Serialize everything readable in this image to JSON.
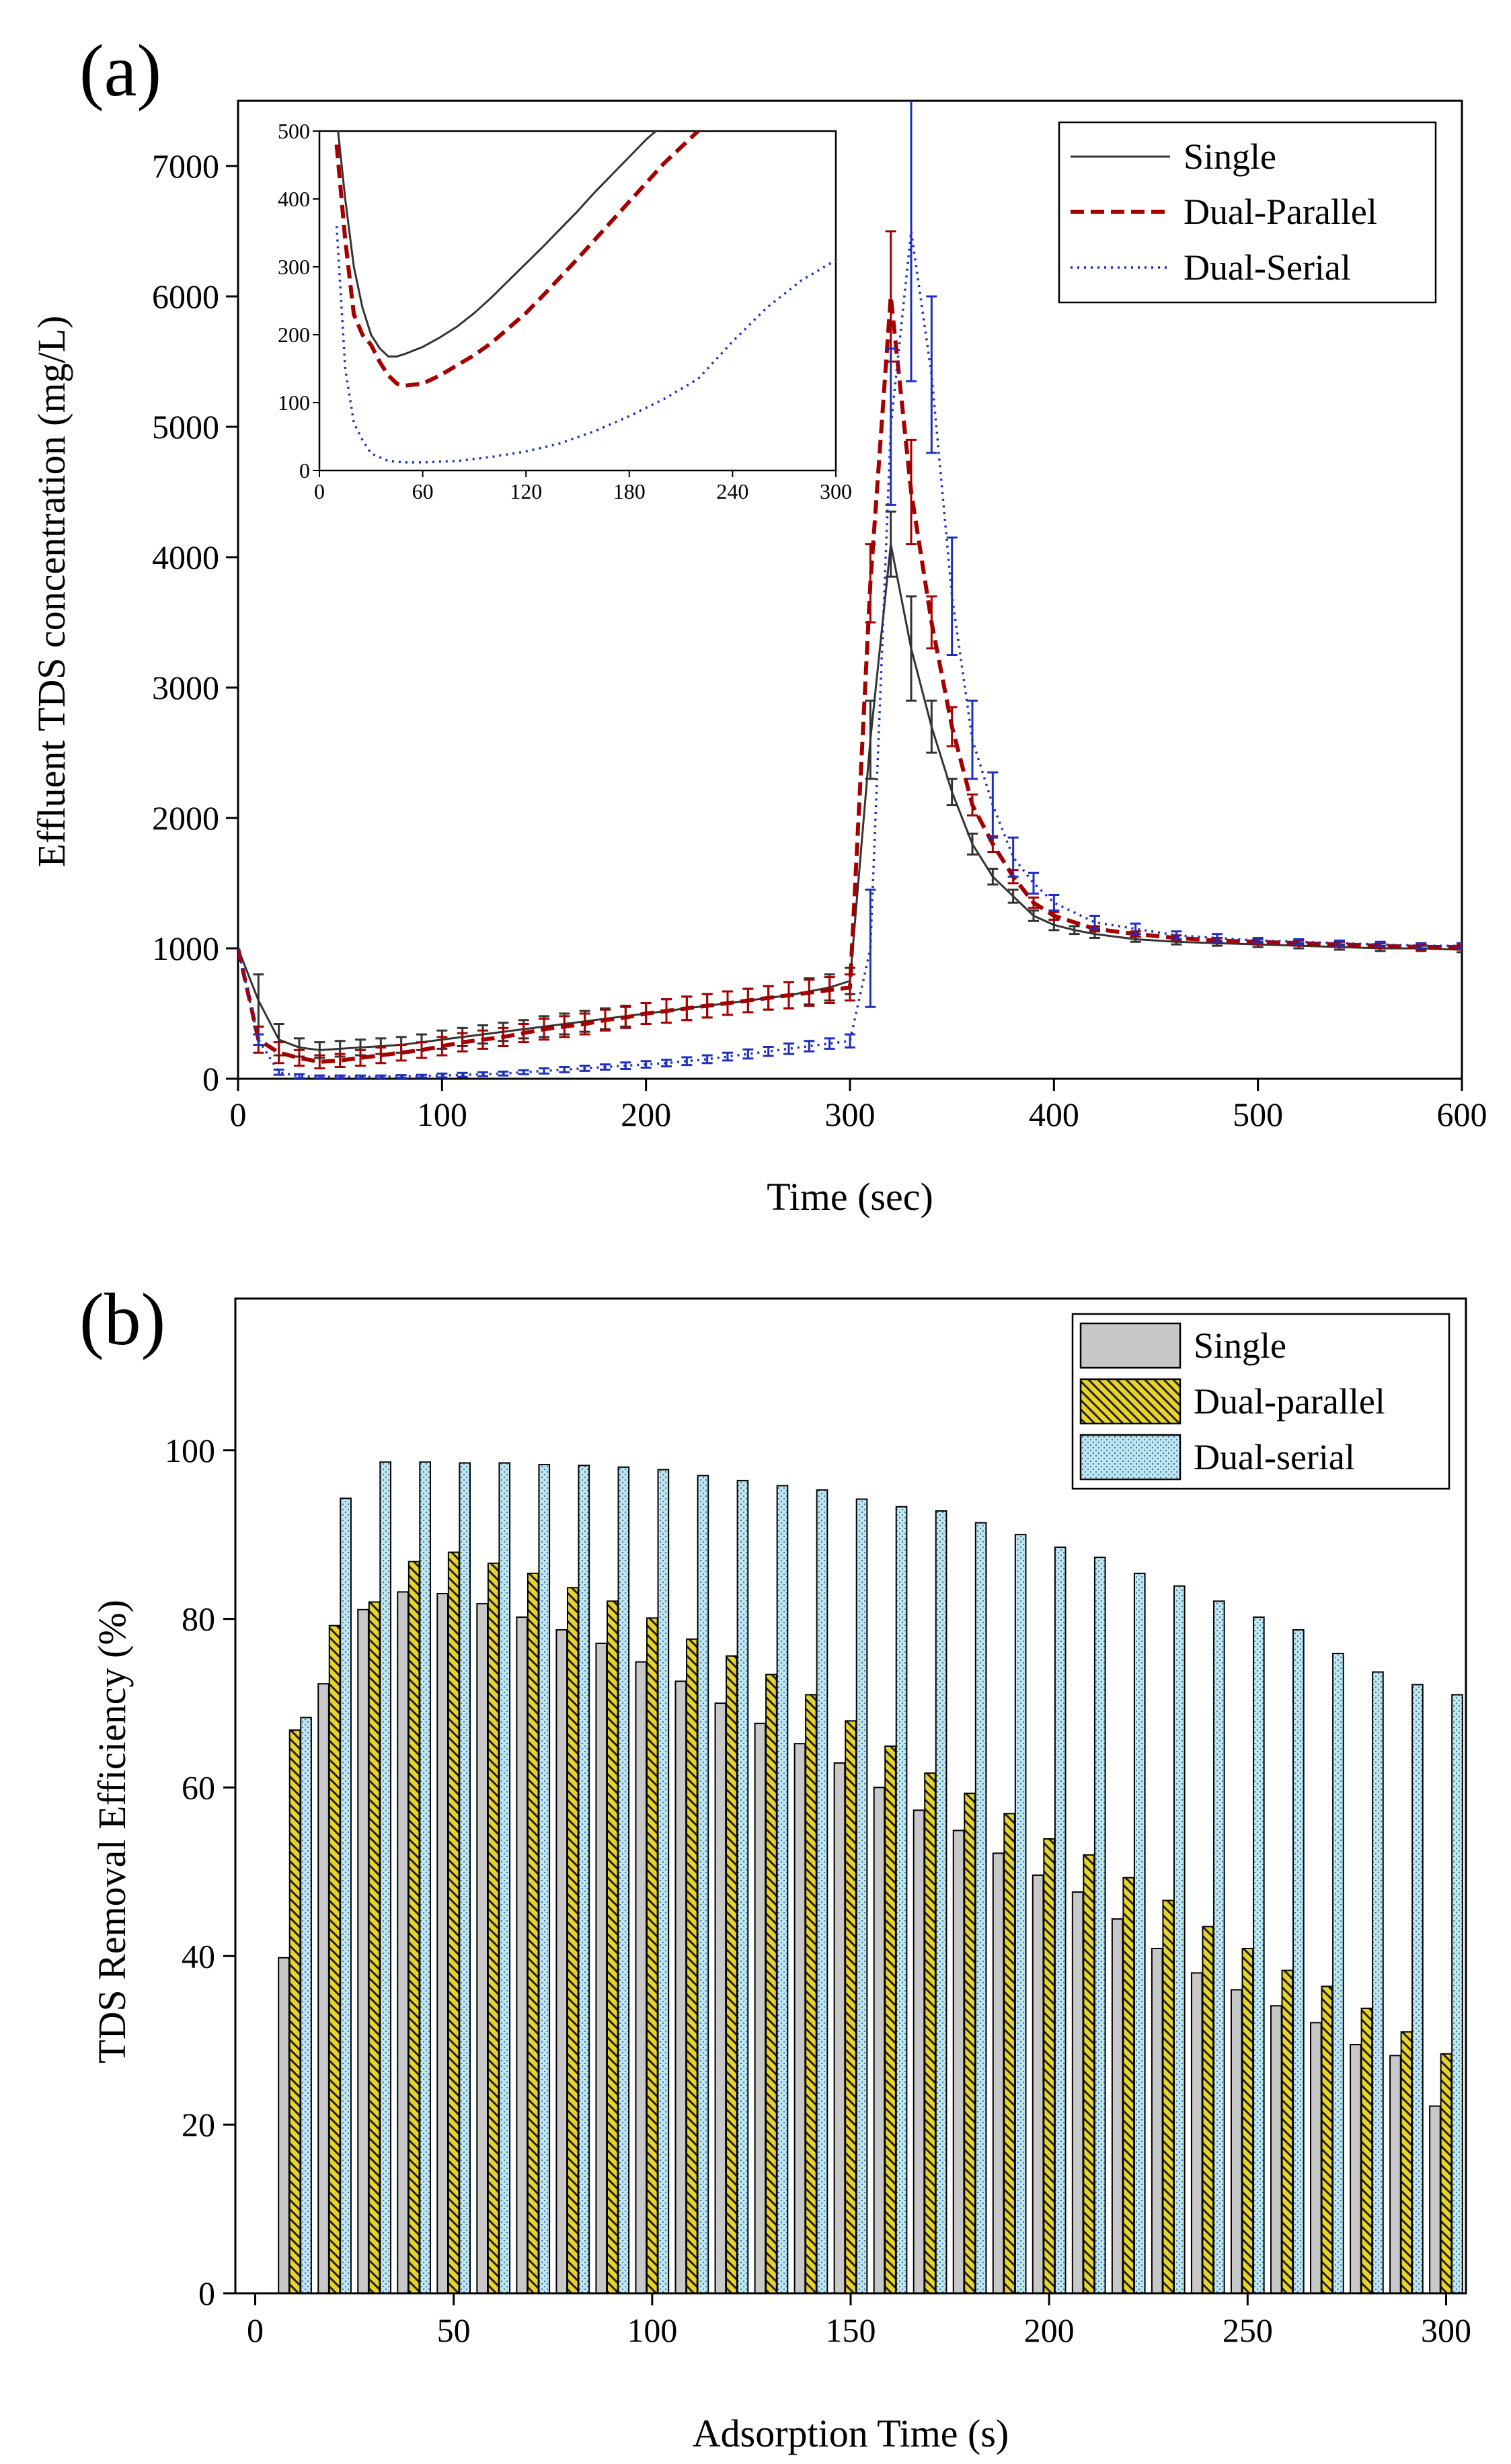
{
  "chart_data": [
    {
      "panel": "(a)",
      "type": "line",
      "xlabel": "Time (sec)",
      "ylabel": "Effluent TDS concentration (mg/L)",
      "xlim": [
        0,
        600
      ],
      "ylim": [
        0,
        7500
      ],
      "xticks": [
        0,
        100,
        200,
        300,
        400,
        500,
        600
      ],
      "yticks": [
        0,
        1000,
        2000,
        3000,
        4000,
        5000,
        6000,
        7000
      ],
      "legend_position": "top-right",
      "series": [
        {
          "name": "Single",
          "color": "#333333",
          "style": "solid",
          "x": [
            0,
            10,
            20,
            30,
            40,
            50,
            60,
            70,
            80,
            90,
            100,
            110,
            120,
            130,
            140,
            150,
            160,
            170,
            180,
            190,
            200,
            210,
            220,
            230,
            240,
            250,
            260,
            270,
            280,
            290,
            300,
            310,
            320,
            330,
            340,
            350,
            360,
            370,
            380,
            390,
            400,
            410,
            420,
            440,
            460,
            480,
            500,
            520,
            540,
            560,
            580,
            600
          ],
          "y": [
            1000,
            600,
            300,
            240,
            220,
            230,
            240,
            250,
            260,
            280,
            300,
            320,
            340,
            360,
            380,
            400,
            420,
            440,
            460,
            480,
            500,
            520,
            540,
            560,
            580,
            600,
            620,
            640,
            670,
            700,
            750,
            2600,
            4100,
            3300,
            2700,
            2200,
            1800,
            1550,
            1400,
            1250,
            1180,
            1140,
            1110,
            1070,
            1050,
            1040,
            1030,
            1020,
            1010,
            1000,
            1000,
            990
          ],
          "err": [
            0,
            200,
            120,
            70,
            60,
            60,
            60,
            60,
            60,
            60,
            70,
            70,
            70,
            70,
            70,
            80,
            80,
            80,
            80,
            80,
            80,
            90,
            90,
            90,
            90,
            90,
            90,
            100,
            100,
            100,
            100,
            300,
            250,
            400,
            200,
            100,
            80,
            60,
            50,
            40,
            40,
            30,
            30,
            20,
            20,
            20,
            20,
            20,
            20,
            20,
            20,
            20
          ]
        },
        {
          "name": "Dual-Parallel",
          "color": "#a40000",
          "style": "dashed",
          "x": [
            0,
            10,
            20,
            30,
            40,
            50,
            60,
            70,
            80,
            90,
            100,
            110,
            120,
            130,
            140,
            150,
            160,
            170,
            180,
            190,
            200,
            210,
            220,
            230,
            240,
            250,
            260,
            270,
            280,
            290,
            300,
            310,
            320,
            330,
            340,
            350,
            360,
            370,
            380,
            390,
            400,
            420,
            440,
            460,
            480,
            500,
            520,
            540,
            560,
            580,
            600
          ],
          "y": [
            1000,
            300,
            200,
            160,
            130,
            140,
            160,
            180,
            200,
            220,
            250,
            280,
            300,
            320,
            350,
            380,
            400,
            420,
            450,
            470,
            500,
            520,
            540,
            560,
            580,
            600,
            620,
            640,
            660,
            680,
            700,
            3800,
            6000,
            4500,
            3500,
            2700,
            2100,
            1800,
            1550,
            1350,
            1250,
            1150,
            1110,
            1080,
            1060,
            1050,
            1040,
            1030,
            1020,
            1010,
            1010
          ],
          "err": [
            0,
            100,
            80,
            60,
            50,
            50,
            60,
            60,
            60,
            60,
            70,
            70,
            70,
            70,
            70,
            80,
            80,
            80,
            80,
            80,
            80,
            90,
            90,
            90,
            90,
            90,
            90,
            100,
            100,
            100,
            100,
            300,
            500,
            400,
            200,
            150,
            80,
            60,
            50,
            40,
            30,
            20,
            20,
            20,
            20,
            20,
            20,
            20,
            20,
            20,
            20
          ]
        },
        {
          "name": "Dual-Serial",
          "color": "#1f2fbd",
          "style": "dotted",
          "x": [
            0,
            10,
            20,
            30,
            40,
            50,
            60,
            70,
            80,
            90,
            100,
            110,
            120,
            130,
            140,
            150,
            160,
            170,
            180,
            190,
            200,
            210,
            220,
            230,
            240,
            250,
            260,
            270,
            280,
            290,
            300,
            310,
            320,
            330,
            340,
            350,
            360,
            370,
            380,
            390,
            400,
            420,
            440,
            460,
            480,
            500,
            520,
            540,
            560,
            580,
            600
          ],
          "y": [
            1000,
            300,
            50,
            20,
            15,
            15,
            15,
            15,
            18,
            20,
            25,
            30,
            35,
            40,
            50,
            60,
            70,
            80,
            90,
            100,
            110,
            120,
            135,
            150,
            170,
            190,
            210,
            230,
            250,
            270,
            290,
            1000,
            5000,
            6500,
            5400,
            3700,
            2600,
            2100,
            1700,
            1500,
            1350,
            1200,
            1150,
            1100,
            1080,
            1060,
            1050,
            1040,
            1030,
            1020,
            1020
          ],
          "err": [
            0,
            40,
            20,
            15,
            10,
            10,
            10,
            10,
            10,
            10,
            15,
            15,
            15,
            15,
            15,
            20,
            20,
            20,
            20,
            25,
            25,
            25,
            30,
            30,
            30,
            35,
            35,
            40,
            40,
            40,
            50,
            450,
            600,
            1150,
            600,
            450,
            300,
            250,
            150,
            80,
            60,
            50,
            40,
            30,
            30,
            20,
            20,
            20,
            20,
            20,
            20
          ]
        }
      ],
      "inset": {
        "xlim": [
          0,
          300
        ],
        "ylim": [
          0,
          500
        ],
        "xticks": [
          0,
          60,
          120,
          180,
          240,
          300
        ],
        "yticks": [
          0,
          100,
          200,
          300,
          400,
          500
        ],
        "series": [
          {
            "name": "Single",
            "x": [
              10,
              15,
              20,
              25,
              30,
              35,
              40,
              45,
              50,
              60,
              70,
              80,
              90,
              100,
              110,
              120,
              130,
              140,
              150,
              160,
              170,
              180,
              190,
              200
            ],
            "y": [
              520,
              400,
              300,
              240,
              200,
              180,
              168,
              168,
              172,
              182,
              196,
              212,
              232,
              255,
              280,
              305,
              330,
              356,
              382,
              410,
              436,
              462,
              488,
              510
            ]
          },
          {
            "name": "Dual-Parallel",
            "x": [
              10,
              15,
              20,
              25,
              30,
              35,
              40,
              45,
              50,
              60,
              70,
              80,
              90,
              100,
              110,
              120,
              130,
              140,
              150,
              160,
              170,
              180,
              190,
              200,
              210,
              220
            ],
            "y": [
              480,
              340,
              230,
              200,
              185,
              160,
              140,
              128,
              125,
              128,
              140,
              155,
              170,
              188,
              210,
              232,
              258,
              285,
              312,
              340,
              368,
              396,
              424,
              452,
              476,
              500
            ]
          },
          {
            "name": "Dual-Serial",
            "x": [
              10,
              15,
              20,
              25,
              30,
              40,
              50,
              60,
              80,
              100,
              120,
              140,
              160,
              180,
              200,
              220,
              240,
              260,
              280,
              300
            ],
            "y": [
              360,
              150,
              70,
              45,
              25,
              14,
              12,
              12,
              14,
              20,
              28,
              40,
              58,
              80,
              105,
              135,
              190,
              240,
              280,
              310
            ]
          }
        ]
      }
    },
    {
      "panel": "(b)",
      "type": "bar",
      "xlabel": "Adsorption Time (s)",
      "ylabel": "TDS Removal Efficiency (%)",
      "xlim": [
        -5,
        305
      ],
      "ylim": [
        0,
        118
      ],
      "xticks": [
        0,
        50,
        100,
        150,
        200,
        250,
        300
      ],
      "yticks": [
        0,
        20,
        40,
        60,
        80,
        100
      ],
      "legend_position": "top-right",
      "categories": [
        10,
        20,
        30,
        40,
        50,
        60,
        70,
        80,
        90,
        100,
        110,
        120,
        130,
        140,
        150,
        160,
        170,
        180,
        190,
        200,
        210,
        220,
        230,
        240,
        250,
        260,
        270,
        280,
        290,
        300
      ],
      "series": [
        {
          "name": "Single",
          "color": "#c8c8c8",
          "pattern": "solid",
          "values": [
            39.8,
            72.3,
            81.1,
            83.2,
            83.0,
            81.8,
            80.2,
            78.7,
            77.1,
            74.9,
            72.6,
            70.0,
            67.6,
            65.2,
            62.9,
            60.0,
            57.3,
            54.9,
            52.2,
            49.6,
            47.6,
            44.4,
            40.9,
            38.0,
            36.0,
            34.1,
            32.1,
            29.5,
            28.2,
            22.2
          ]
        },
        {
          "name": "Dual-parallel",
          "color": "#e8d32a",
          "pattern": "hatch",
          "values": [
            66.8,
            79.2,
            82.0,
            86.8,
            87.9,
            86.6,
            85.4,
            83.7,
            82.1,
            80.1,
            77.6,
            75.6,
            73.4,
            71.0,
            67.9,
            64.9,
            61.7,
            59.3,
            56.9,
            53.9,
            52.0,
            49.3,
            46.6,
            43.5,
            40.9,
            38.3,
            36.4,
            33.8,
            31.0,
            28.4
          ]
        },
        {
          "name": "Dual-serial",
          "color": "#bde6f2",
          "pattern": "dots",
          "values": [
            68.3,
            94.3,
            98.6,
            98.6,
            98.5,
            98.5,
            98.3,
            98.2,
            98.0,
            97.7,
            97.0,
            96.4,
            95.8,
            95.3,
            94.2,
            93.3,
            92.8,
            91.4,
            90.0,
            88.5,
            87.3,
            85.4,
            83.9,
            82.1,
            80.2,
            78.7,
            75.9,
            73.7,
            72.2,
            71.0
          ]
        }
      ]
    }
  ]
}
